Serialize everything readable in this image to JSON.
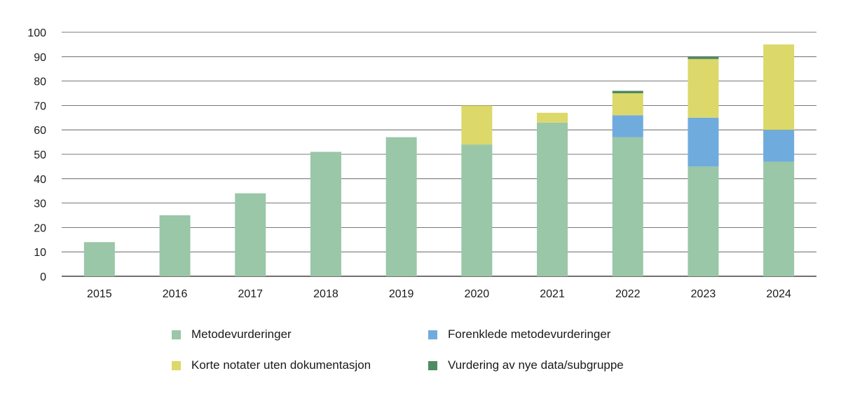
{
  "chart_data": {
    "type": "bar",
    "stacked": true,
    "title": "",
    "xlabel": "",
    "ylabel": "",
    "categories": [
      "2015",
      "2016",
      "2017",
      "2018",
      "2019",
      "2020",
      "2021",
      "2022",
      "2023",
      "2024"
    ],
    "ylim": [
      0,
      100
    ],
    "yticks": [
      0,
      10,
      20,
      30,
      40,
      50,
      60,
      70,
      80,
      90,
      100
    ],
    "grid": true,
    "legend_position": "bottom",
    "series": [
      {
        "name": "Metodevurderinger",
        "color": "#99c7a8",
        "values": [
          14,
          25,
          34,
          51,
          57,
          54,
          63,
          57,
          45,
          47
        ]
      },
      {
        "name": "Forenklede metodevurderinger",
        "color": "#6fabdd",
        "values": [
          0,
          0,
          0,
          0,
          0,
          0,
          0,
          9,
          20,
          13
        ]
      },
      {
        "name": "Korte notater uten dokumentasjon",
        "color": "#dcd86a",
        "values": [
          0,
          0,
          0,
          0,
          0,
          16,
          4,
          9,
          24,
          35
        ]
      },
      {
        "name": "Vurdering av nye data/subgruppe",
        "color": "#4f8a63",
        "values": [
          0,
          0,
          0,
          0,
          0,
          0,
          0,
          1,
          1,
          0
        ]
      }
    ]
  }
}
